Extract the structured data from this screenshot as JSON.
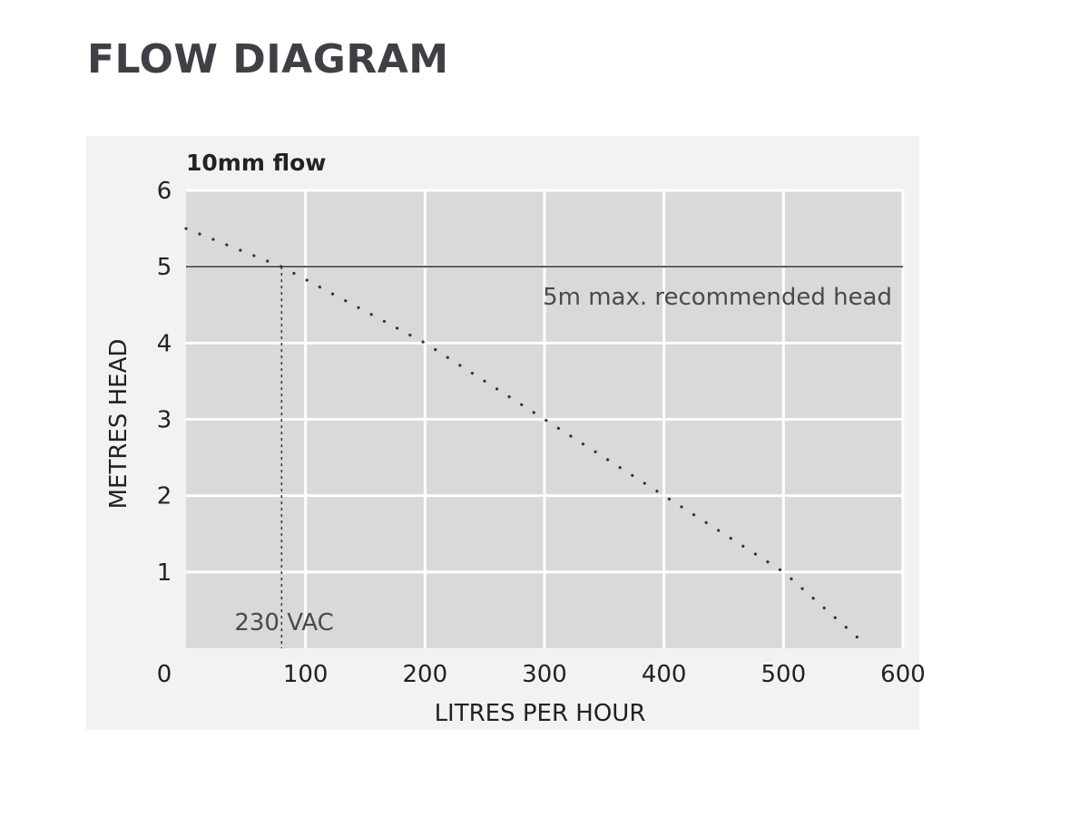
{
  "page": {
    "heading": "FLOW DIAGRAM"
  },
  "colors": {
    "heading": "#3f3f46",
    "plot_background": "#d9d9d9",
    "panel_background": "#f2f2f2",
    "grid": "#ffffff",
    "limit_line": "#555555",
    "curve": "#333333"
  },
  "chart_data": {
    "type": "line",
    "title": "10mm flow",
    "xlabel": "LITRES PER HOUR",
    "ylabel": "METRES HEAD",
    "xlim": [
      0,
      600
    ],
    "ylim": [
      0,
      6
    ],
    "x_ticks": [
      "0",
      "100",
      "200",
      "300",
      "400",
      "500",
      "600"
    ],
    "y_ticks": [
      "1",
      "2",
      "3",
      "4",
      "5",
      "6"
    ],
    "grid": true,
    "series": [
      {
        "style": "dotted",
        "x": [
          0,
          80,
          200,
          300,
          400,
          500,
          565
        ],
        "y": [
          5.5,
          5.0,
          4.0,
          3.0,
          2.0,
          1.0,
          0.1
        ]
      }
    ],
    "reference_lines": [
      {
        "orientation": "horizontal",
        "value": 5,
        "style": "solid",
        "label": "5m max. recommended head"
      },
      {
        "orientation": "vertical",
        "value": 80,
        "style": "dotted",
        "label": "230 VAC"
      }
    ]
  }
}
